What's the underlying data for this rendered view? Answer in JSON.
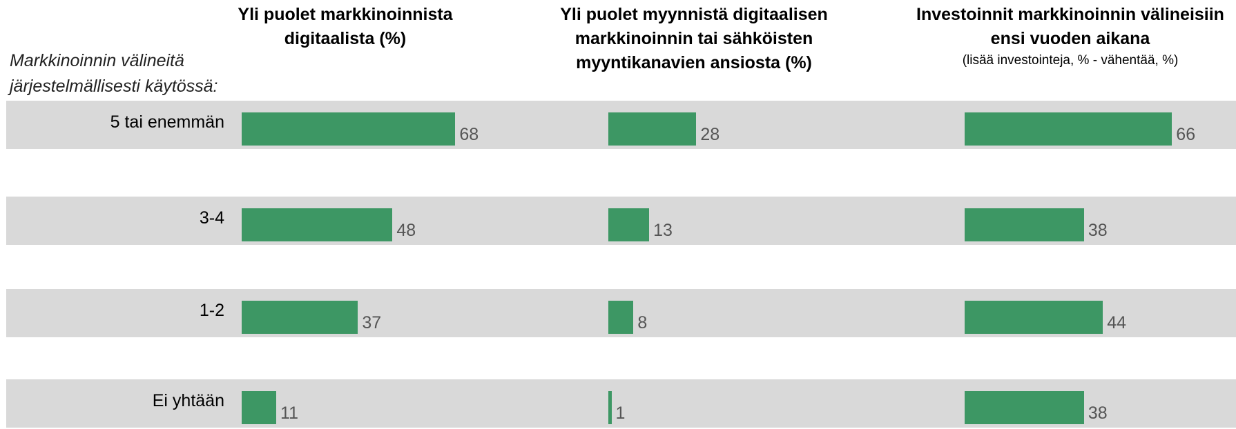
{
  "chart_data": {
    "type": "bar",
    "y_axis_label": "Markkinoinnin välineitä järjestelmällisesti käytössä:",
    "categories": [
      "5 tai enemmän",
      "3-4",
      "1-2",
      "Ei yhtään"
    ],
    "series": [
      {
        "name": "Yli puolet markkinoinnista digitaalista (%)",
        "color": "#3d9764",
        "values": [
          68,
          48,
          37,
          11
        ]
      },
      {
        "name": "Yli puolet myynnistä digitaalisen markkinoinnin tai sähköisten myyntikanavien ansiosta (%)",
        "color": "#3d9764",
        "values": [
          28,
          13,
          8,
          1
        ]
      },
      {
        "name": "Investoinnit markkinoinnin välineisiin ensi vuoden aikana",
        "subtitle": "(lisää investointeja, % - vähentää, %)",
        "color": "#3d9764",
        "values": [
          66,
          38,
          44,
          38
        ]
      }
    ]
  }
}
